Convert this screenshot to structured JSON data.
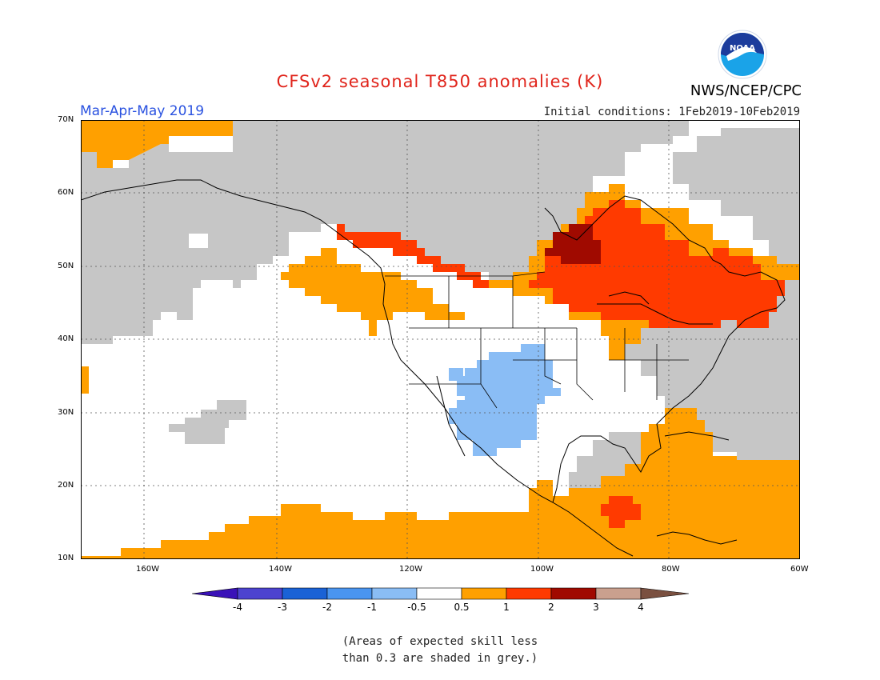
{
  "header": {
    "title": "CFSv2 seasonal T850 anomalies (K)",
    "period": "Mar-Apr-May 2019",
    "initial_conditions": "Initial conditions: 1Feb2019-10Feb2019",
    "agency": "NWS/NCEP/CPC",
    "logo_text": "NOAA"
  },
  "axes": {
    "lat_ticks": [
      "70N",
      "60N",
      "50N",
      "40N",
      "30N",
      "20N",
      "10N"
    ],
    "lon_ticks": [
      "160W",
      "140W",
      "120W",
      "100W",
      "80W",
      "60W"
    ]
  },
  "legend": {
    "ticks": [
      "-4",
      "-3",
      "-2",
      "-1",
      "-0.5",
      "0.5",
      "1",
      "2",
      "3",
      "4"
    ],
    "colors": {
      "lt_-4": "#3a12b8",
      "-4_-3": "#4c43cf",
      "-3_-2": "#1a62d6",
      "-2_-1": "#4a95f0",
      "-1_-0.5": "#8abdf5",
      "-0.5_0.5": "#ffffff",
      "0.5_1": "#ffa000",
      "1_2": "#ff3a00",
      "2_3": "#a00a00",
      "3_4": "#caa08e",
      "gt_4": "#7a5040"
    }
  },
  "map": {
    "skill_mask_color": "#c6c6c6",
    "regions": [
      {
        "name": "grey-north-canada-alaska",
        "category": "low-skill"
      },
      {
        "name": "grey-north-pacific",
        "category": "low-skill"
      },
      {
        "name": "grey-near-hawaii",
        "category": "low-skill"
      },
      {
        "name": "grey-western-atlantic",
        "category": "low-skill"
      },
      {
        "name": "grey-gulf-of-mexico",
        "category": "low-skill"
      },
      {
        "name": "orange-northwest",
        "category": "0.5_1"
      },
      {
        "name": "orange-north-central",
        "category": "0.5_1"
      },
      {
        "name": "orange-eastern-canada",
        "category": "0.5_1"
      },
      {
        "name": "orange-tropics-south",
        "category": "0.5_1"
      },
      {
        "name": "orange-caribbean",
        "category": "0.5_1"
      },
      {
        "name": "orange-northwest-corner",
        "category": "0.5_1"
      },
      {
        "name": "red-bc-alberta",
        "category": "1_2"
      },
      {
        "name": "red-great-lakes-ontario-quebec",
        "category": "1_2"
      },
      {
        "name": "red-central-america",
        "category": "1_2"
      },
      {
        "name": "darkred-northwest-ontario",
        "category": "2_3"
      },
      {
        "name": "lightblue-southwest-mexico",
        "category": "-1_-0.5"
      }
    ]
  },
  "footnote": {
    "line1": "(Areas of expected skill less",
    "line2": "than 0.3 are shaded in grey.)"
  }
}
